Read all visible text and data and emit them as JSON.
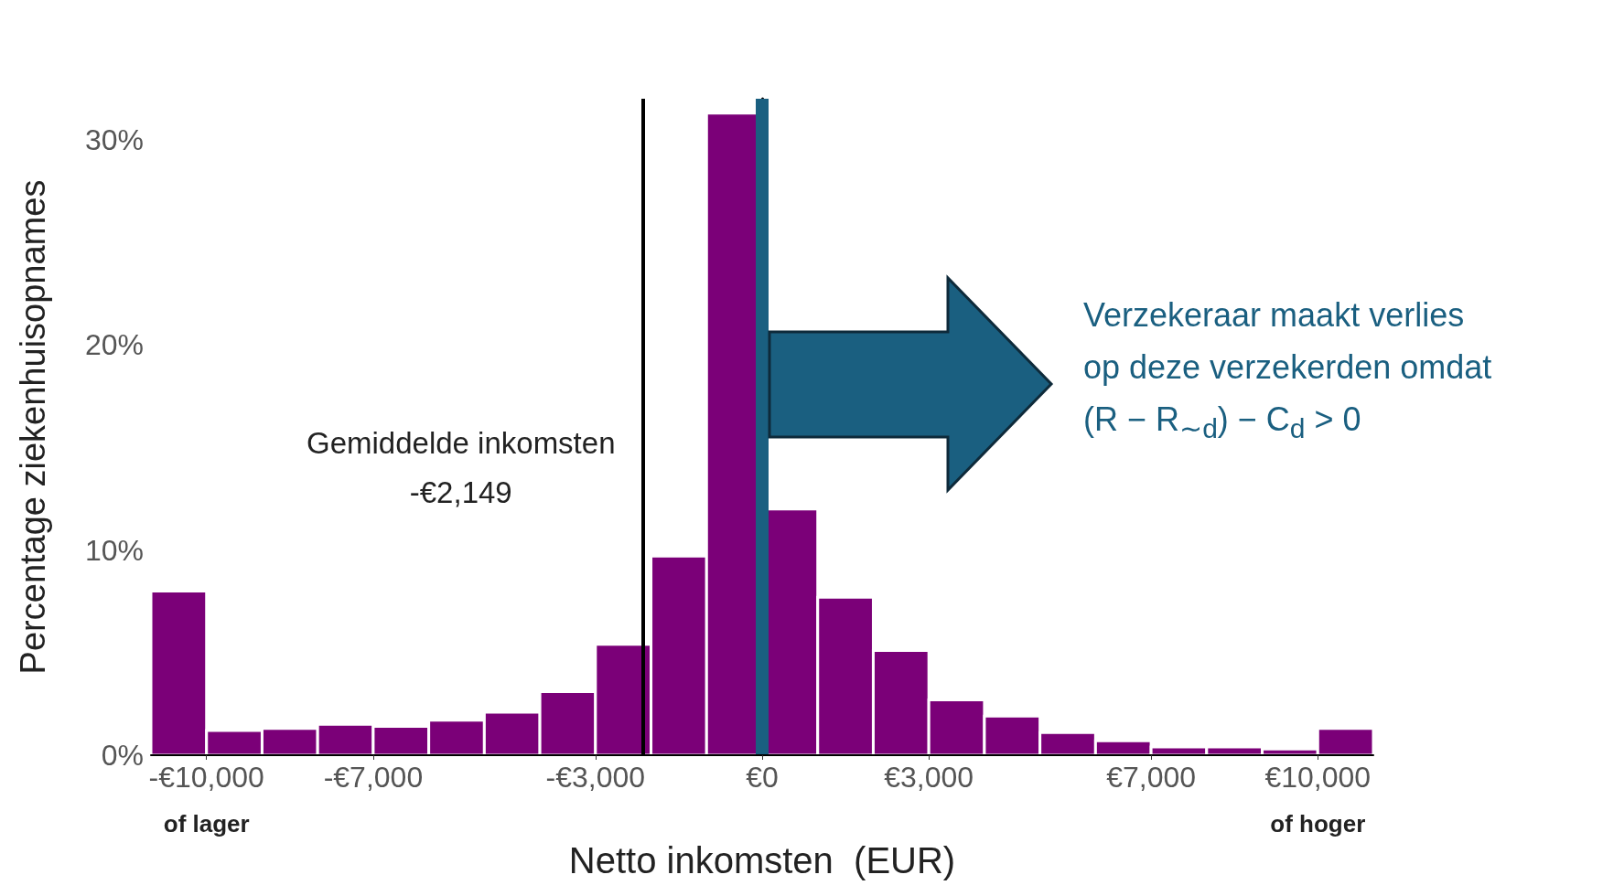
{
  "chart_data": {
    "type": "histogram",
    "xlabel": "Netto inkomsten  (EUR)",
    "ylabel": "Percentage ziekenhuisopnames",
    "color": "#7b0078",
    "bins": [
      -11000,
      -10000,
      -9000,
      -8000,
      -7000,
      -6000,
      -5000,
      -4000,
      -3000,
      -2000,
      -1000,
      0,
      1000,
      2000,
      3000,
      4000,
      5000,
      6000,
      7000,
      8000,
      9000,
      10000,
      11000
    ],
    "values": [
      8.0,
      1.2,
      1.3,
      1.5,
      1.4,
      1.7,
      2.1,
      3.1,
      5.4,
      9.7,
      31.3,
      12.0,
      7.7,
      5.1,
      2.7,
      1.9,
      1.1,
      0.7,
      0.4,
      0.4,
      0.3,
      1.3
    ],
    "xlim": [
      -11000,
      11000
    ],
    "xticks": [
      {
        "value": -10000,
        "label": "-€10,000\nof lager"
      },
      {
        "value": -7000,
        "label": "-€7,000"
      },
      {
        "value": -3000,
        "label": "-€3,000"
      },
      {
        "value": 0,
        "label": "€0"
      },
      {
        "value": 3000,
        "label": "€3,000"
      },
      {
        "value": 7000,
        "label": "€7,000"
      },
      {
        "value": 10000,
        "label": "€10,000\nof hoger"
      }
    ],
    "ylim": [
      0,
      32
    ],
    "yticks": [
      {
        "value": 0,
        "label": "0%"
      },
      {
        "value": 10,
        "label": "10%"
      },
      {
        "value": 20,
        "label": "20%"
      },
      {
        "value": 30,
        "label": "30%"
      }
    ],
    "ref_lines": [
      {
        "axis": "x",
        "value": -2149,
        "label": "Gemiddelde inkomsten\n-€2,149",
        "color": "#000000"
      },
      {
        "axis": "x",
        "value": 0,
        "color": "#1a5f80"
      }
    ],
    "annotations": [
      "Verzekeraar maakt verlies\nop deze verzekerden omdat\n(R − R$_{∼d}$) − C$_{d}$ > 0"
    ]
  }
}
